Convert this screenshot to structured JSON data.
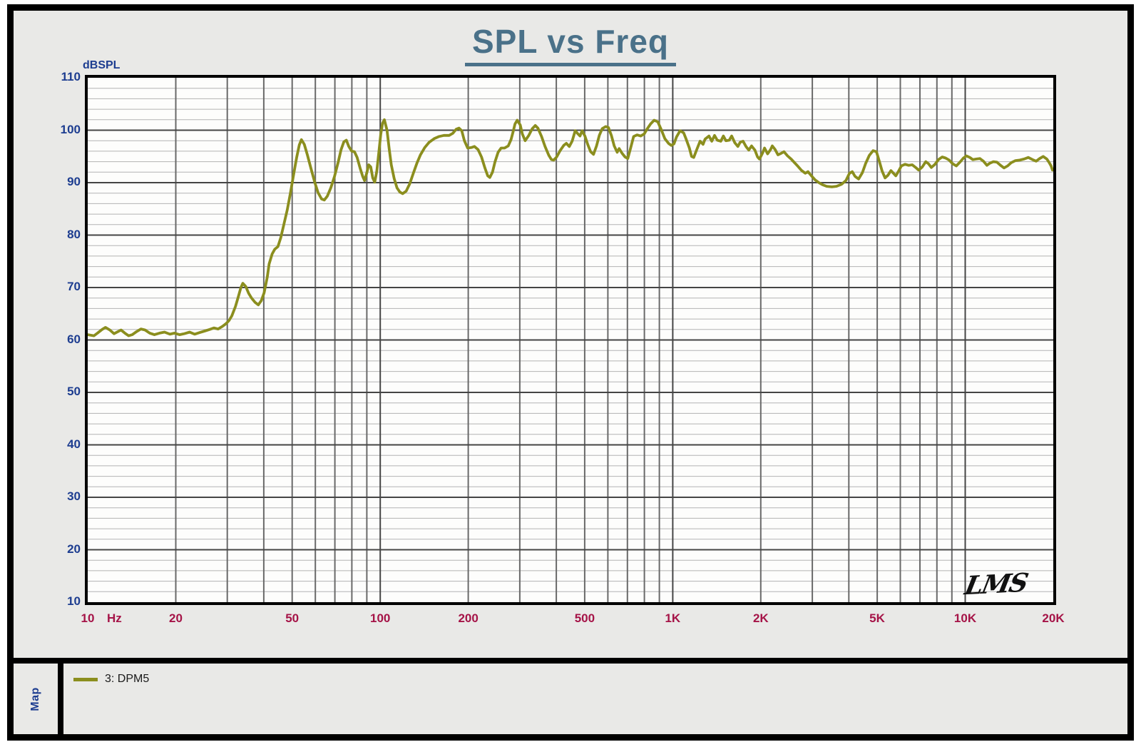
{
  "window": {
    "background": "#e9e9e7",
    "frame_border": "#000000"
  },
  "header": {
    "title": "SPL vs Freq",
    "title_color": "#4a7189"
  },
  "colors": {
    "navy": "#1d3d90",
    "crimson": "#a51347",
    "title_blue": "#4a7189",
    "curve_olive": "#8b8e1e",
    "plot_bg": "#fdfdfc",
    "grid_minor": "#b3b3b3",
    "grid_major": "#454545",
    "grid_vertical": "#696969"
  },
  "axes": {
    "y": {
      "label": "dBSPL",
      "min": 10,
      "max": 110,
      "tick_step": 10,
      "minor_step": 2,
      "ticks": [
        110,
        100,
        90,
        80,
        70,
        60,
        50,
        40,
        30,
        20,
        10
      ]
    },
    "x": {
      "unit": "Hz",
      "scale": "log",
      "min": 10,
      "max": 20000,
      "ticks": [
        {
          "f": 10,
          "label": "10"
        },
        {
          "f": 20,
          "label": "20"
        },
        {
          "f": 50,
          "label": "50"
        },
        {
          "f": 100,
          "label": "100"
        },
        {
          "f": 200,
          "label": "200"
        },
        {
          "f": 500,
          "label": "500"
        },
        {
          "f": 1000,
          "label": "1K"
        },
        {
          "f": 2000,
          "label": "2K"
        },
        {
          "f": 5000,
          "label": "5K"
        },
        {
          "f": 10000,
          "label": "10K"
        },
        {
          "f": 20000,
          "label": "20K"
        }
      ]
    }
  },
  "plot": {
    "watermark": "LMS"
  },
  "legend": {
    "sidebar_label": "Map",
    "items": [
      {
        "label": "3: DPM5",
        "color": "#8b8e1e"
      }
    ]
  },
  "chart_data": {
    "type": "line",
    "title": "SPL vs Freq",
    "ylabel": "dBSPL",
    "x_unit": "Hz",
    "x_scale": "log",
    "xlim": [
      10,
      20000
    ],
    "ylim": [
      10,
      110
    ],
    "grid": true,
    "grid_minor_db": 2,
    "legend_position": "bottom-left",
    "series": [
      {
        "name": "3: DPM5",
        "color": "#8b8e1e",
        "points": [
          [
            10,
            61
          ],
          [
            10.5,
            60.8
          ],
          [
            10.8,
            61.3
          ],
          [
            11.2,
            62
          ],
          [
            11.5,
            62.4
          ],
          [
            11.9,
            61.9
          ],
          [
            12.3,
            61.2
          ],
          [
            12.7,
            61.6
          ],
          [
            13,
            61.9
          ],
          [
            13.4,
            61.3
          ],
          [
            13.8,
            60.8
          ],
          [
            14.2,
            61
          ],
          [
            14.7,
            61.6
          ],
          [
            15.2,
            62.1
          ],
          [
            15.7,
            61.9
          ],
          [
            16.3,
            61.3
          ],
          [
            16.9,
            61
          ],
          [
            17.6,
            61.3
          ],
          [
            18.3,
            61.5
          ],
          [
            19.1,
            61.1
          ],
          [
            19.8,
            61.3
          ],
          [
            20.6,
            61
          ],
          [
            21.4,
            61.2
          ],
          [
            22.3,
            61.5
          ],
          [
            23.2,
            61.1
          ],
          [
            24.1,
            61.4
          ],
          [
            25.1,
            61.7
          ],
          [
            26.1,
            62
          ],
          [
            27,
            62.3
          ],
          [
            27.9,
            62.1
          ],
          [
            28.9,
            62.6
          ],
          [
            29.7,
            63.1
          ],
          [
            30.4,
            63.7
          ],
          [
            31.1,
            64.6
          ],
          [
            32,
            66.4
          ],
          [
            32.7,
            68.2
          ],
          [
            33.4,
            70
          ],
          [
            33.9,
            70.8
          ],
          [
            34.7,
            70.2
          ],
          [
            35.5,
            68.9
          ],
          [
            36.3,
            68
          ],
          [
            37.3,
            67.2
          ],
          [
            38.3,
            66.7
          ],
          [
            39.2,
            67.5
          ],
          [
            40.1,
            69
          ],
          [
            41.1,
            72
          ],
          [
            41.7,
            74.5
          ],
          [
            42.7,
            76.4
          ],
          [
            43.6,
            77.3
          ],
          [
            44.7,
            77.8
          ],
          [
            45.7,
            79.5
          ],
          [
            46.7,
            81.7
          ],
          [
            48.1,
            84.8
          ],
          [
            49.4,
            88.2
          ],
          [
            50.6,
            91.6
          ],
          [
            51.8,
            94.8
          ],
          [
            52.9,
            97.2
          ],
          [
            53.8,
            98.2
          ],
          [
            55,
            97.3
          ],
          [
            56.3,
            95.4
          ],
          [
            58,
            92.7
          ],
          [
            59.7,
            90.1
          ],
          [
            61.3,
            88.1
          ],
          [
            63,
            86.9
          ],
          [
            64.4,
            86.7
          ],
          [
            65.9,
            87.4
          ],
          [
            67.8,
            89
          ],
          [
            69.8,
            91.2
          ],
          [
            71.9,
            94
          ],
          [
            73.5,
            96.3
          ],
          [
            75.1,
            97.8
          ],
          [
            76.6,
            98.1
          ],
          [
            78.1,
            96.9
          ],
          [
            79.9,
            96
          ],
          [
            81.6,
            95.9
          ],
          [
            83.4,
            94.8
          ],
          [
            85.3,
            92.8
          ],
          [
            87.1,
            91.2
          ],
          [
            88.4,
            90.4
          ],
          [
            89.9,
            91.8
          ],
          [
            91.3,
            93.4
          ],
          [
            92.8,
            93
          ],
          [
            94.3,
            90.9
          ],
          [
            95.8,
            90.1
          ],
          [
            97.4,
            92.3
          ],
          [
            99,
            96
          ],
          [
            100.4,
            99.2
          ],
          [
            101.8,
            101.3
          ],
          [
            103.3,
            102
          ],
          [
            105.5,
            100
          ],
          [
            107.3,
            96.5
          ],
          [
            109.1,
            93.4
          ],
          [
            111.6,
            90.8
          ],
          [
            114.1,
            89
          ],
          [
            116.7,
            88.2
          ],
          [
            119.3,
            87.9
          ],
          [
            122.7,
            88.4
          ],
          [
            126.2,
            89.8
          ],
          [
            129.8,
            91.8
          ],
          [
            133.5,
            93.7
          ],
          [
            137.3,
            95.3
          ],
          [
            142,
            96.7
          ],
          [
            147,
            97.7
          ],
          [
            153,
            98.4
          ],
          [
            159,
            98.8
          ],
          [
            165,
            99
          ],
          [
            172,
            99
          ],
          [
            177,
            99.4
          ],
          [
            182,
            100.2
          ],
          [
            186,
            100.4
          ],
          [
            190,
            99.9
          ],
          [
            194,
            98
          ],
          [
            199,
            96.6
          ],
          [
            205,
            96.7
          ],
          [
            210,
            96.9
          ],
          [
            216,
            96.3
          ],
          [
            222,
            94.9
          ],
          [
            228,
            92.8
          ],
          [
            233,
            91.3
          ],
          [
            237,
            91
          ],
          [
            242,
            92
          ],
          [
            247,
            94
          ],
          [
            253,
            95.8
          ],
          [
            259,
            96.6
          ],
          [
            266,
            96.6
          ],
          [
            274,
            97
          ],
          [
            280,
            98.2
          ],
          [
            285,
            99.8
          ],
          [
            289,
            101.2
          ],
          [
            294,
            101.9
          ],
          [
            301,
            101
          ],
          [
            306,
            99.3
          ],
          [
            313,
            98
          ],
          [
            322,
            99
          ],
          [
            331,
            100.3
          ],
          [
            339,
            100.9
          ],
          [
            346,
            100.4
          ],
          [
            356,
            98.8
          ],
          [
            366,
            96.9
          ],
          [
            377,
            95.2
          ],
          [
            385,
            94.4
          ],
          [
            392,
            94.3
          ],
          [
            401,
            94.9
          ],
          [
            412,
            96.1
          ],
          [
            424,
            97.1
          ],
          [
            433,
            97.5
          ],
          [
            443,
            96.9
          ],
          [
            453,
            97.9
          ],
          [
            464,
            99.9
          ],
          [
            474,
            99.3
          ],
          [
            482,
            98.9
          ],
          [
            490,
            99.9
          ],
          [
            501,
            98.9
          ],
          [
            513,
            97.2
          ],
          [
            524,
            95.9
          ],
          [
            536,
            95.4
          ],
          [
            549,
            97
          ],
          [
            561,
            99
          ],
          [
            574,
            100.3
          ],
          [
            590,
            100.7
          ],
          [
            603,
            100.5
          ],
          [
            617,
            99
          ],
          [
            631,
            97
          ],
          [
            646,
            95.8
          ],
          [
            656,
            96.5
          ],
          [
            671,
            95.6
          ],
          [
            687,
            94.9
          ],
          [
            702,
            94.6
          ],
          [
            718,
            96.6
          ],
          [
            735,
            98.8
          ],
          [
            755,
            99.1
          ],
          [
            777,
            98.9
          ],
          [
            799,
            99.3
          ],
          [
            817,
            100.2
          ],
          [
            840,
            101.2
          ],
          [
            864,
            101.9
          ],
          [
            889,
            101.6
          ],
          [
            914,
            100.1
          ],
          [
            940,
            98.4
          ],
          [
            967,
            97.5
          ],
          [
            989,
            97.1
          ],
          [
            1010,
            97.4
          ],
          [
            1030,
            98.7
          ],
          [
            1060,
            99.9
          ],
          [
            1090,
            99.5
          ],
          [
            1110,
            98.4
          ],
          [
            1140,
            96.6
          ],
          [
            1160,
            95
          ],
          [
            1180,
            94.8
          ],
          [
            1210,
            96.4
          ],
          [
            1240,
            97.9
          ],
          [
            1270,
            97.3
          ],
          [
            1290,
            98.3
          ],
          [
            1330,
            98.9
          ],
          [
            1360,
            97.9
          ],
          [
            1390,
            99
          ],
          [
            1420,
            98.1
          ],
          [
            1460,
            97.9
          ],
          [
            1490,
            98.9
          ],
          [
            1520,
            98
          ],
          [
            1560,
            98.1
          ],
          [
            1590,
            98.9
          ],
          [
            1630,
            97.6
          ],
          [
            1670,
            96.9
          ],
          [
            1700,
            97.7
          ],
          [
            1740,
            97.9
          ],
          [
            1780,
            96.9
          ],
          [
            1820,
            96.2
          ],
          [
            1860,
            97
          ],
          [
            1910,
            96.2
          ],
          [
            1950,
            94.9
          ],
          [
            1980,
            94.5
          ],
          [
            2030,
            95.7
          ],
          [
            2060,
            96.6
          ],
          [
            2110,
            95.5
          ],
          [
            2160,
            96.3
          ],
          [
            2190,
            97
          ],
          [
            2240,
            96.3
          ],
          [
            2290,
            95.3
          ],
          [
            2350,
            95.6
          ],
          [
            2400,
            95.9
          ],
          [
            2470,
            95.1
          ],
          [
            2540,
            94.5
          ],
          [
            2610,
            93.8
          ],
          [
            2680,
            93.1
          ],
          [
            2760,
            92.3
          ],
          [
            2840,
            91.8
          ],
          [
            2900,
            92.1
          ],
          [
            2990,
            91.2
          ],
          [
            3070,
            90.5
          ],
          [
            3160,
            90
          ],
          [
            3250,
            89.6
          ],
          [
            3360,
            89.3
          ],
          [
            3500,
            89.2
          ],
          [
            3630,
            89.3
          ],
          [
            3780,
            89.7
          ],
          [
            3910,
            90.4
          ],
          [
            4020,
            91.8
          ],
          [
            4110,
            92.1
          ],
          [
            4200,
            91.2
          ],
          [
            4320,
            90.7
          ],
          [
            4450,
            91.9
          ],
          [
            4570,
            93.7
          ],
          [
            4700,
            95.2
          ],
          [
            4840,
            96.1
          ],
          [
            4970,
            95.9
          ],
          [
            5090,
            94
          ],
          [
            5200,
            92.2
          ],
          [
            5320,
            90.9
          ],
          [
            5440,
            91.4
          ],
          [
            5570,
            92.3
          ],
          [
            5660,
            91.9
          ],
          [
            5790,
            91.3
          ],
          [
            5920,
            92.2
          ],
          [
            6050,
            93.2
          ],
          [
            6230,
            93.5
          ],
          [
            6400,
            93.3
          ],
          [
            6590,
            93.4
          ],
          [
            6770,
            92.9
          ],
          [
            6930,
            92.4
          ],
          [
            7130,
            93
          ],
          [
            7330,
            94
          ],
          [
            7490,
            93.6
          ],
          [
            7660,
            92.9
          ],
          [
            7880,
            93.5
          ],
          [
            8100,
            94.4
          ],
          [
            8340,
            94.9
          ],
          [
            8570,
            94.7
          ],
          [
            8810,
            94.3
          ],
          [
            9060,
            93.6
          ],
          [
            9320,
            93.2
          ],
          [
            9590,
            93.9
          ],
          [
            9860,
            94.7
          ],
          [
            10090,
            95.1
          ],
          [
            10370,
            94.8
          ],
          [
            10610,
            94.4
          ],
          [
            10910,
            94.5
          ],
          [
            11220,
            94.6
          ],
          [
            11540,
            94.1
          ],
          [
            11860,
            93.3
          ],
          [
            12130,
            93.7
          ],
          [
            12480,
            94
          ],
          [
            12830,
            93.9
          ],
          [
            13200,
            93.3
          ],
          [
            13570,
            92.8
          ],
          [
            13960,
            93.2
          ],
          [
            14350,
            93.8
          ],
          [
            14850,
            94.2
          ],
          [
            15360,
            94.3
          ],
          [
            15890,
            94.5
          ],
          [
            16430,
            94.8
          ],
          [
            16990,
            94.4
          ],
          [
            17480,
            94.1
          ],
          [
            17970,
            94.6
          ],
          [
            18480,
            95
          ],
          [
            19010,
            94.5
          ],
          [
            19330,
            93.9
          ],
          [
            19660,
            93.2
          ],
          [
            19880,
            92.4
          ]
        ]
      }
    ]
  }
}
